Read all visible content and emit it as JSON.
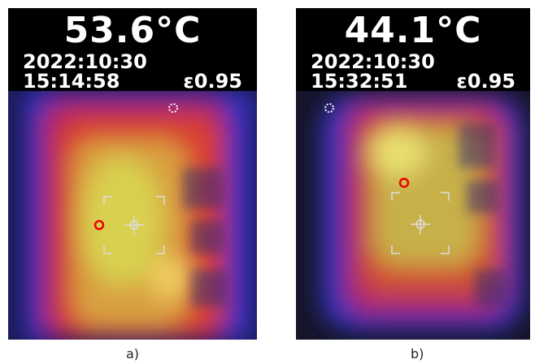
{
  "panels": [
    {
      "temperature": "53.6°C",
      "date": "2022:10:30",
      "time": "15:14:58",
      "emissivity": "ε0.95",
      "caption": "a)"
    },
    {
      "temperature": "44.1°C",
      "date": "2022:10:30",
      "time": "15:32:51",
      "emissivity": "ε0.95",
      "caption": "b)"
    }
  ]
}
